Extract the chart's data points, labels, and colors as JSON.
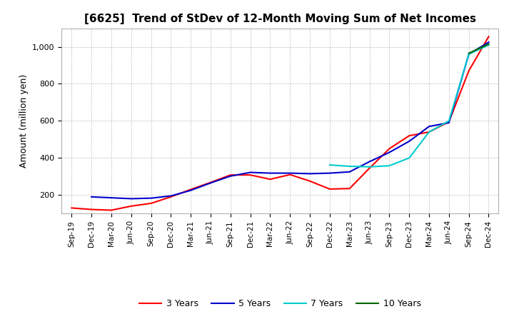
{
  "title": "[6625]  Trend of StDev of 12-Month Moving Sum of Net Incomes",
  "ylabel": "Amount (million yen)",
  "x_labels": [
    "Sep-19",
    "Dec-19",
    "Mar-20",
    "Jun-20",
    "Sep-20",
    "Dec-20",
    "Mar-21",
    "Jun-21",
    "Sep-21",
    "Dec-21",
    "Mar-22",
    "Jun-22",
    "Sep-22",
    "Dec-22",
    "Mar-23",
    "Jun-23",
    "Sep-23",
    "Dec-23",
    "Mar-24",
    "Jun-24",
    "Sep-24",
    "Dec-24"
  ],
  "series": {
    "3 Years": {
      "color": "#FF0000",
      "data": [
        130,
        122,
        118,
        140,
        155,
        190,
        230,
        268,
        308,
        308,
        285,
        310,
        275,
        232,
        235,
        345,
        450,
        520,
        540,
        595,
        870,
        1055
      ]
    },
    "5 Years": {
      "color": "#0000CC",
      "data": [
        null,
        190,
        185,
        180,
        183,
        195,
        225,
        265,
        302,
        322,
        318,
        318,
        315,
        318,
        325,
        380,
        430,
        490,
        570,
        590,
        960,
        1025
      ]
    },
    "7 Years": {
      "color": "#00CCCC",
      "data": [
        null,
        null,
        null,
        null,
        null,
        null,
        null,
        null,
        null,
        null,
        null,
        null,
        null,
        362,
        355,
        352,
        358,
        400,
        540,
        600,
        960,
        1010
      ]
    },
    "10 Years": {
      "color": "#006600",
      "data": [
        null,
        null,
        null,
        null,
        null,
        null,
        null,
        null,
        null,
        null,
        null,
        null,
        null,
        null,
        null,
        null,
        null,
        null,
        null,
        null,
        965,
        1015
      ]
    }
  },
  "ylim": [
    100,
    1100
  ],
  "yticks": [
    200,
    400,
    600,
    800,
    1000
  ],
  "ytick_labels": [
    "200",
    "400",
    "600",
    "800",
    "1,000"
  ],
  "background_color": "#FFFFFF",
  "grid_color": "#AAAAAA"
}
